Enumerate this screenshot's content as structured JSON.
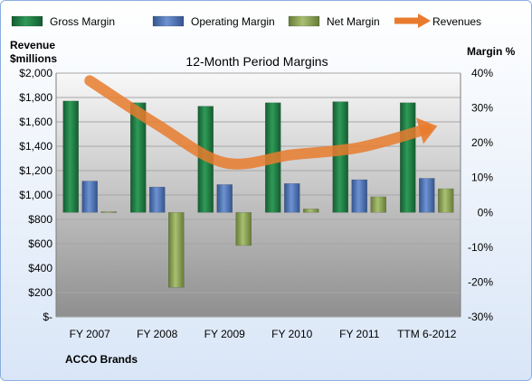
{
  "chart_data": {
    "type": "bar",
    "title": "12-Month Period Margins",
    "left_axis_label_line1": "Revenue",
    "left_axis_label_line2": "$millions",
    "right_axis_label": "Margin %",
    "footer_label": "ACCO Brands",
    "categories": [
      "FY 2007",
      "FY 2008",
      "FY 2009",
      "FY 2010",
      "FY 2011",
      "TTM 6-2012"
    ],
    "y_left": {
      "min": 0,
      "max": 2000,
      "step": 200,
      "tick_labels": [
        "$-",
        "$200",
        "$400",
        "$600",
        "$800",
        "$1,000",
        "$1,200",
        "$1,400",
        "$1,600",
        "$1,800",
        "$2,000"
      ]
    },
    "y_right": {
      "min": -30,
      "max": 40,
      "step": 10,
      "tick_labels": [
        "-30%",
        "-20%",
        "-10%",
        "0%",
        "10%",
        "20%",
        "30%",
        "40%"
      ]
    },
    "series": [
      {
        "name": "Gross Margin",
        "axis": "right",
        "kind": "bar",
        "color": "#1e7e44",
        "values": [
          32,
          31.5,
          30.5,
          31.5,
          31.8,
          31.5
        ]
      },
      {
        "name": "Operating Margin",
        "axis": "right",
        "kind": "bar",
        "color": "#4f74b8",
        "values": [
          9,
          7.3,
          8,
          8.3,
          9.4,
          9.8
        ]
      },
      {
        "name": "Net Margin",
        "axis": "right",
        "kind": "bar",
        "color": "#8ea65a",
        "values": [
          0.2,
          -21.5,
          -9.5,
          1,
          4.5,
          6.8
        ]
      },
      {
        "name": "Revenues",
        "axis": "left",
        "kind": "line",
        "color": "#e87b2e",
        "values": [
          1938,
          1578,
          1265,
          1330,
          1390,
          1542
        ]
      }
    ],
    "grid": true,
    "legend_position": "top"
  }
}
